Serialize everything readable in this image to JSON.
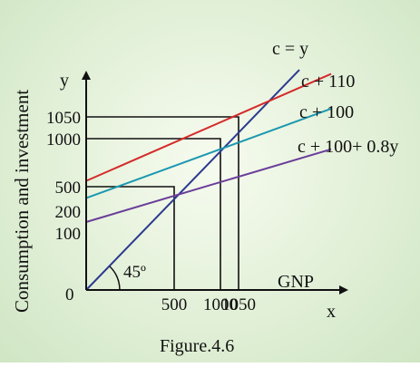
{
  "chart_data": {
    "type": "line",
    "title": "",
    "caption": "Figure.4.6",
    "xlabel": "GNP",
    "x_axis_letter": "x",
    "ylabel": "Consumption and investment",
    "y_axis_letter": "y",
    "origin_label": "0",
    "angle_label": "45º",
    "x_ticks": [
      {
        "value": 500,
        "label": "500"
      },
      {
        "value": 1000,
        "label": "1000"
      },
      {
        "value": 1050,
        "label": "1050"
      }
    ],
    "y_ticks": [
      {
        "value": 100,
        "label": "100"
      },
      {
        "value": 200,
        "label": "200"
      },
      {
        "value": 500,
        "label": "500"
      },
      {
        "value": 1000,
        "label": "1000"
      },
      {
        "value": 1050,
        "label": "1050"
      }
    ],
    "series": [
      {
        "name": "c = y",
        "color": "#2b3a8f",
        "points": [
          [
            0,
            0
          ],
          [
            1280,
            1280
          ]
        ]
      },
      {
        "name": "c + 110",
        "color": "#d42a2a",
        "points": [
          [
            0,
            560
          ],
          [
            1400,
            1260
          ]
        ]
      },
      {
        "name": "c + 100",
        "color": "#1b98b0",
        "points": [
          [
            0,
            360
          ],
          [
            1400,
            1090
          ]
        ]
      },
      {
        "name": "c + 100+ 0.8y",
        "color": "#6a3d9a",
        "points": [
          [
            0,
            150
          ],
          [
            1400,
            890
          ]
        ]
      }
    ],
    "guides": [
      {
        "x": 500,
        "y": 500
      },
      {
        "x": 1000,
        "y": 1000
      },
      {
        "x": 1050,
        "y": 1050
      }
    ]
  }
}
